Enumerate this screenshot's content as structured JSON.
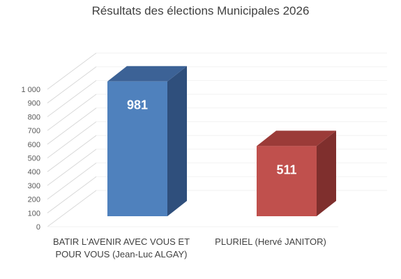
{
  "chart_data": {
    "type": "bar",
    "style": "3d-column",
    "title": "Résultats des élections Municipales 2026",
    "categories": [
      "BATIR L'AVENIR AVEC VOUS ET POUR VOUS (Jean-Luc ALGAY)",
      "PLURIEL (Hervé JANITOR)"
    ],
    "category_lines": [
      [
        "BATIR L'AVENIR AVEC VOUS ET",
        "POUR VOUS (Jean-Luc ALGAY)"
      ],
      [
        "PLURIEL (Hervé JANITOR)"
      ]
    ],
    "values": [
      981,
      511
    ],
    "data_labels": [
      "981",
      "511"
    ],
    "colors": [
      {
        "front": "#4f81bd",
        "side": "#2f4f7c",
        "top": "#3c6296"
      },
      {
        "front": "#c0504d",
        "side": "#7f2f2d",
        "top": "#9b3b38"
      }
    ],
    "ylim": [
      0,
      1000
    ],
    "yticks": [
      0,
      100,
      200,
      300,
      400,
      500,
      600,
      700,
      800,
      900,
      1000
    ],
    "ytick_labels": [
      "0",
      "100",
      "200",
      "300",
      "400",
      "500",
      "600",
      "700",
      "800",
      "900",
      "1 000"
    ],
    "grid": true,
    "legend": "none",
    "xlabel": "",
    "ylabel": ""
  }
}
